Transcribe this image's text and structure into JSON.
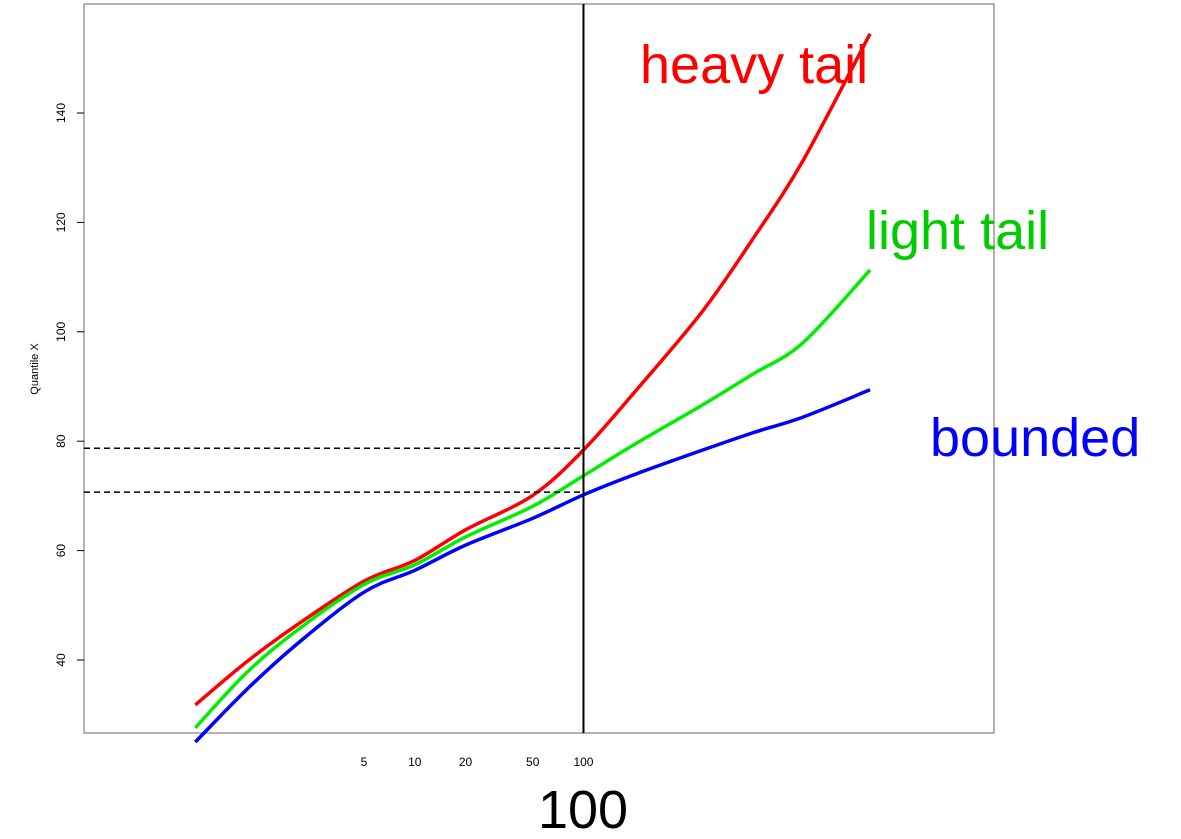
{
  "chart_data": {
    "type": "line",
    "title": "",
    "xlabel": "100",
    "ylabel": "Quantile X",
    "x_scale": "log",
    "xlim": [
      0.2,
      10000
    ],
    "ylim": [
      27.5,
      160
    ],
    "x_ticks": [
      5,
      10,
      20,
      50,
      100
    ],
    "x_tick_labels": [
      "5",
      "10",
      "20",
      "50",
      "100"
    ],
    "y_ticks": [
      40,
      60,
      80,
      100,
      120,
      140
    ],
    "y_tick_labels": [
      "40",
      "60",
      "80",
      "100",
      "120",
      "140"
    ],
    "grid": false,
    "legend": "none",
    "x": [
      0.5,
      1,
      2,
      5,
      10,
      20,
      50,
      100,
      200,
      500,
      1000,
      2000,
      5000
    ],
    "series": [
      {
        "name": "heavy tail",
        "color": "#ff0000",
        "values": [
          31.8,
          39.6,
          46.4,
          54.4,
          58.2,
          63.8,
          70.1,
          78.4,
          88.9,
          103.5,
          116.8,
          131.3,
          154.5
        ]
      },
      {
        "name": "light tail",
        "color": "#00ee00",
        "values": [
          27.6,
          37.6,
          45.4,
          53.8,
          57.4,
          62.5,
          68.1,
          73.7,
          79.4,
          86.5,
          92.2,
          98.0,
          111.3
        ]
      },
      {
        "name": "bounded",
        "color": "#0000ff",
        "values": [
          25.0,
          34.5,
          42.9,
          52.4,
          56.4,
          61.0,
          65.9,
          70.2,
          73.9,
          78.3,
          81.5,
          84.4,
          89.4
        ]
      }
    ],
    "reference_lines": {
      "vertical_x": 100,
      "dashed_y": [
        78.7,
        70.7
      ]
    }
  }
}
